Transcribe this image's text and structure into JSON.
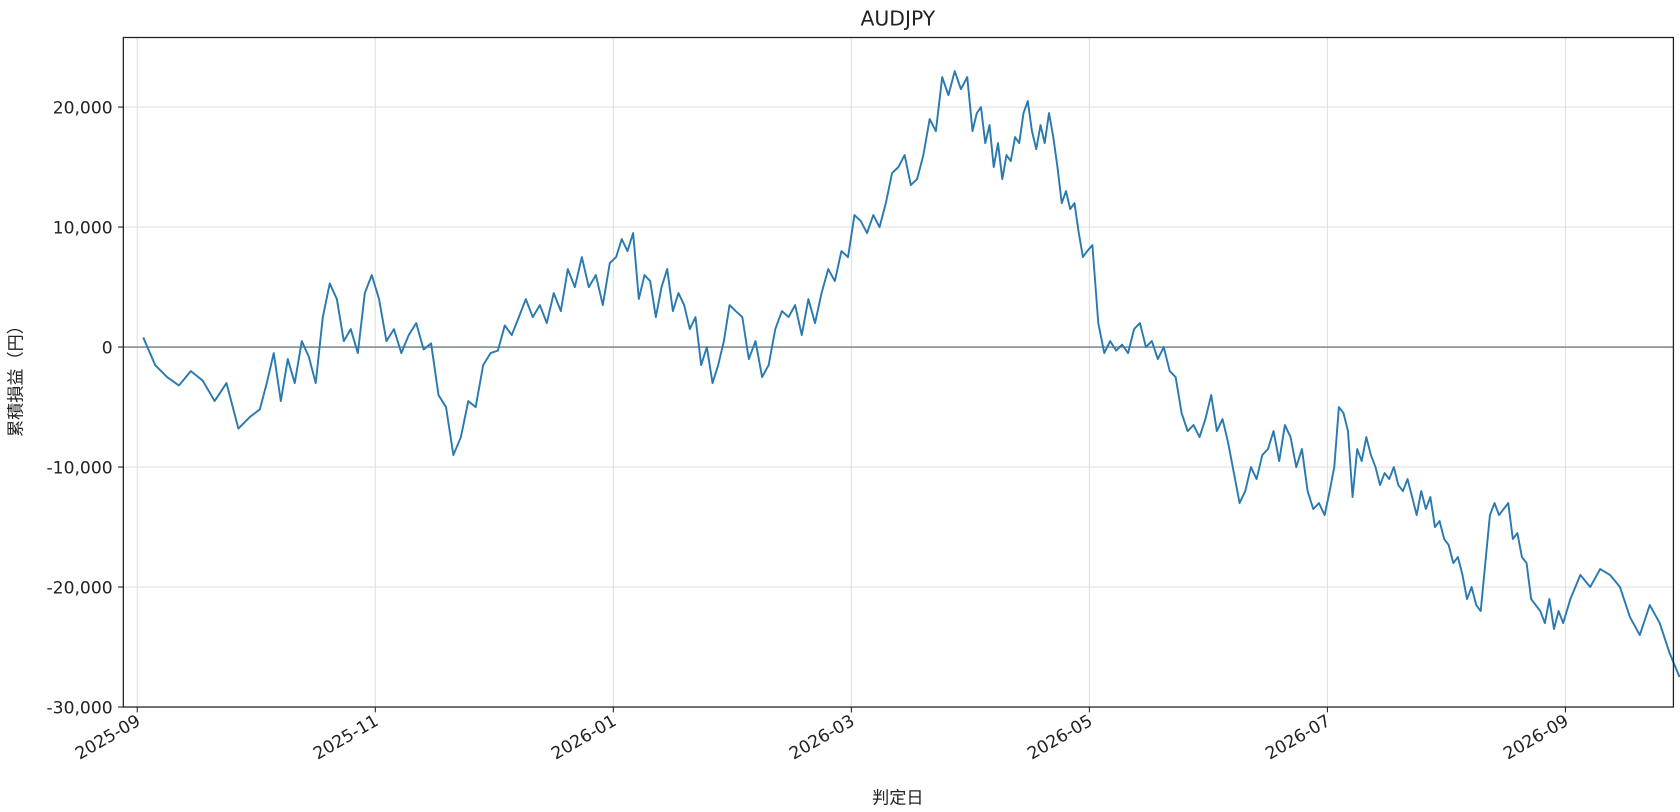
{
  "chart_data": {
    "type": "line",
    "title": "AUDJPY",
    "x_label": "判定日",
    "y_label": "累積損益（円）",
    "series": [
      {
        "name": "AUDJPY",
        "color": "#2a7ab0",
        "x": [
          "2025-09",
          "2025-09",
          "2025-09",
          "2025-09",
          "2025-09",
          "2025-09",
          "2025-09",
          "2025-09",
          "2025-09",
          "2025-09",
          "2025-10",
          "2025-10",
          "2025-10",
          "2025-10",
          "2025-10",
          "2025-10",
          "2025-10",
          "2025-10",
          "2025-10",
          "2025-10",
          "2025-10",
          "2025-10",
          "2025-10",
          "2025-10",
          "2025-10",
          "2025-10",
          "2025-10",
          "2025-11",
          "2025-11",
          "2025-11",
          "2025-11",
          "2025-11",
          "2025-11",
          "2025-11",
          "2025-11",
          "2025-11",
          "2025-11",
          "2025-11",
          "2025-11",
          "2025-11",
          "2025-11",
          "2025-11",
          "2025-11",
          "2025-12",
          "2025-12",
          "2025-12",
          "2025-12",
          "2025-12",
          "2025-12",
          "2025-12",
          "2025-12",
          "2025-12",
          "2025-12",
          "2025-12",
          "2025-12",
          "2025-12",
          "2025-12",
          "2025-12",
          "2025-12",
          "2025-12",
          "2026-01",
          "2026-01",
          "2026-01",
          "2026-01",
          "2026-01",
          "2026-01",
          "2026-01",
          "2026-01",
          "2026-01",
          "2026-01",
          "2026-01",
          "2026-01",
          "2026-01",
          "2026-01",
          "2026-01",
          "2026-01",
          "2026-01",
          "2026-01",
          "2026-01",
          "2026-01",
          "2026-01",
          "2026-02",
          "2026-02",
          "2026-02",
          "2026-02",
          "2026-02",
          "2026-02",
          "2026-02",
          "2026-02",
          "2026-02",
          "2026-02",
          "2026-02",
          "2026-02",
          "2026-02",
          "2026-02",
          "2026-02",
          "2026-02",
          "2026-02",
          "2026-02",
          "2026-03",
          "2026-03",
          "2026-03",
          "2026-03",
          "2026-03",
          "2026-03",
          "2026-03",
          "2026-03",
          "2026-03",
          "2026-03",
          "2026-03",
          "2026-03",
          "2026-03",
          "2026-03",
          "2026-03",
          "2026-03",
          "2026-03",
          "2026-03",
          "2026-03",
          "2026-04",
          "2026-04",
          "2026-04",
          "2026-04",
          "2026-04",
          "2026-04",
          "2026-04",
          "2026-04",
          "2026-04",
          "2026-04",
          "2026-04",
          "2026-04",
          "2026-04",
          "2026-04",
          "2026-04",
          "2026-04",
          "2026-04",
          "2026-04",
          "2026-04",
          "2026-04",
          "2026-04",
          "2026-04",
          "2026-04",
          "2026-04",
          "2026-04",
          "2026-04",
          "2026-04",
          "2026-04",
          "2026-05",
          "2026-05",
          "2026-05",
          "2026-05",
          "2026-05",
          "2026-05",
          "2026-05",
          "2026-05",
          "2026-05",
          "2026-05",
          "2026-05",
          "2026-05",
          "2026-05",
          "2026-05",
          "2026-05",
          "2026-05",
          "2026-05",
          "2026-05",
          "2026-05",
          "2026-05",
          "2026-06",
          "2026-06",
          "2026-06",
          "2026-06",
          "2026-06",
          "2026-06",
          "2026-06",
          "2026-06",
          "2026-06",
          "2026-06",
          "2026-06",
          "2026-06",
          "2026-06",
          "2026-06",
          "2026-06",
          "2026-06",
          "2026-06",
          "2026-06",
          "2026-06",
          "2026-06",
          "2026-06",
          "2026-07",
          "2026-07",
          "2026-07",
          "2026-07",
          "2026-07",
          "2026-07",
          "2026-07",
          "2026-07",
          "2026-07",
          "2026-07",
          "2026-07",
          "2026-07",
          "2026-07",
          "2026-07",
          "2026-07",
          "2026-07",
          "2026-07",
          "2026-07",
          "2026-07",
          "2026-07",
          "2026-07",
          "2026-07",
          "2026-07",
          "2026-07",
          "2026-07",
          "2026-07",
          "2026-08",
          "2026-08",
          "2026-08",
          "2026-08",
          "2026-08",
          "2026-08",
          "2026-08",
          "2026-08",
          "2026-08",
          "2026-08",
          "2026-08",
          "2026-08",
          "2026-08",
          "2026-08",
          "2026-08",
          "2026-08",
          "2026-08",
          "2026-08",
          "2026-08",
          "2026-08",
          "2026-08",
          "2026-08",
          "2026-08",
          "2026-08",
          "2026-08",
          "2026-08",
          "2026-09",
          "2026-09",
          "2026-09",
          "2026-09",
          "2026-09",
          "2026-09",
          "2026-09",
          "2026-09",
          "2026-09",
          "2026-09",
          "2026-09",
          "2026-09"
        ],
        "values": [
          800,
          -1500,
          -2500,
          -3200,
          -2000,
          -2800,
          -4500,
          -3000,
          -6800,
          -5800,
          -5200,
          -3000,
          -500,
          -4500,
          -1000,
          -3000,
          500,
          -800,
          -3000,
          2500,
          5300,
          4000,
          500,
          1500,
          -500,
          4500,
          6000,
          4000,
          500,
          1500,
          -500,
          1000,
          2000,
          -200,
          300,
          -4000,
          -5000,
          -9000,
          -7500,
          -4500,
          -5000,
          -1500,
          -500,
          -300,
          1800,
          1000,
          2500,
          4000,
          2500,
          3500,
          2000,
          4500,
          3000,
          6500,
          5000,
          7500,
          5000,
          6000,
          3500,
          7000,
          7500,
          9000,
          8000,
          9500,
          4000,
          6000,
          5500,
          2500,
          5000,
          6500,
          3000,
          4500,
          3500,
          1500,
          2500,
          -1500,
          0,
          -3000,
          -1500,
          500,
          3500,
          3000,
          2500,
          -1000,
          500,
          -2500,
          -1500,
          1500,
          3000,
          2500,
          3500,
          1000,
          4000,
          2000,
          4500,
          6500,
          5500,
          8000,
          7500,
          11000,
          10500,
          9500,
          11000,
          10000,
          12000,
          14500,
          15000,
          16000,
          13500,
          14000,
          16000,
          19000,
          18000,
          22500,
          21000,
          23000,
          21500,
          22500,
          18000,
          19500,
          20000,
          17000,
          18500,
          15000,
          17000,
          14000,
          16000,
          15500,
          17500,
          17000,
          19500,
          20500,
          18000,
          16500,
          18500,
          17000,
          19500,
          17500,
          15000,
          12000,
          13000,
          11500,
          12000,
          9500,
          7500,
          8000,
          8500,
          2000,
          -500,
          500,
          -300,
          200,
          -500,
          1500,
          2000,
          0,
          500,
          -1000,
          0,
          -2000,
          -2500,
          -5500,
          -7000,
          -6500,
          -7500,
          -6000,
          -4000,
          -7000,
          -6000,
          -8000,
          -10500,
          -13000,
          -12000,
          -10000,
          -11000,
          -9000,
          -8500,
          -7000,
          -9500,
          -6500,
          -7500,
          -10000,
          -8500,
          -12000,
          -13500,
          -13000,
          -14000,
          -12000,
          -10000,
          -5000,
          -5500,
          -7000,
          -12500,
          -8500,
          -9500,
          -7500,
          -9000,
          -10000,
          -11500,
          -10500,
          -11000,
          -10000,
          -11500,
          -12000,
          -11000,
          -12500,
          -14000,
          -12000,
          -13500,
          -12500,
          -15000,
          -14500,
          -16000,
          -16500,
          -18000,
          -17500,
          -19000,
          -21000,
          -20000,
          -21500,
          -22000,
          -18000,
          -14000,
          -13000,
          -14000,
          -13500,
          -13000,
          -16000,
          -15500,
          -17500,
          -18000,
          -21000,
          -21500,
          -22000,
          -23000,
          -21000,
          -23500,
          -22000,
          -23000,
          -21000,
          -19000,
          -20000,
          -18500,
          -19000,
          -20000,
          -22500,
          -24000,
          -21500,
          -23000,
          -25500,
          -27500
        ]
      }
    ],
    "xticks": [
      "2025-09",
      "2025-11",
      "2026-01",
      "2026-03",
      "2026-05",
      "2026-07",
      "2026-09"
    ],
    "ylim": [
      -30000,
      25800
    ],
    "yticks": [
      {
        "value": -30000,
        "label": "-30,000"
      },
      {
        "value": -20000,
        "label": "-20,000"
      },
      {
        "value": -10000,
        "label": "-10,000"
      },
      0,
      {
        "value": 10000,
        "label": "10,000"
      },
      {
        "value": 20000,
        "label": "20,000"
      }
    ],
    "grid": true
  }
}
